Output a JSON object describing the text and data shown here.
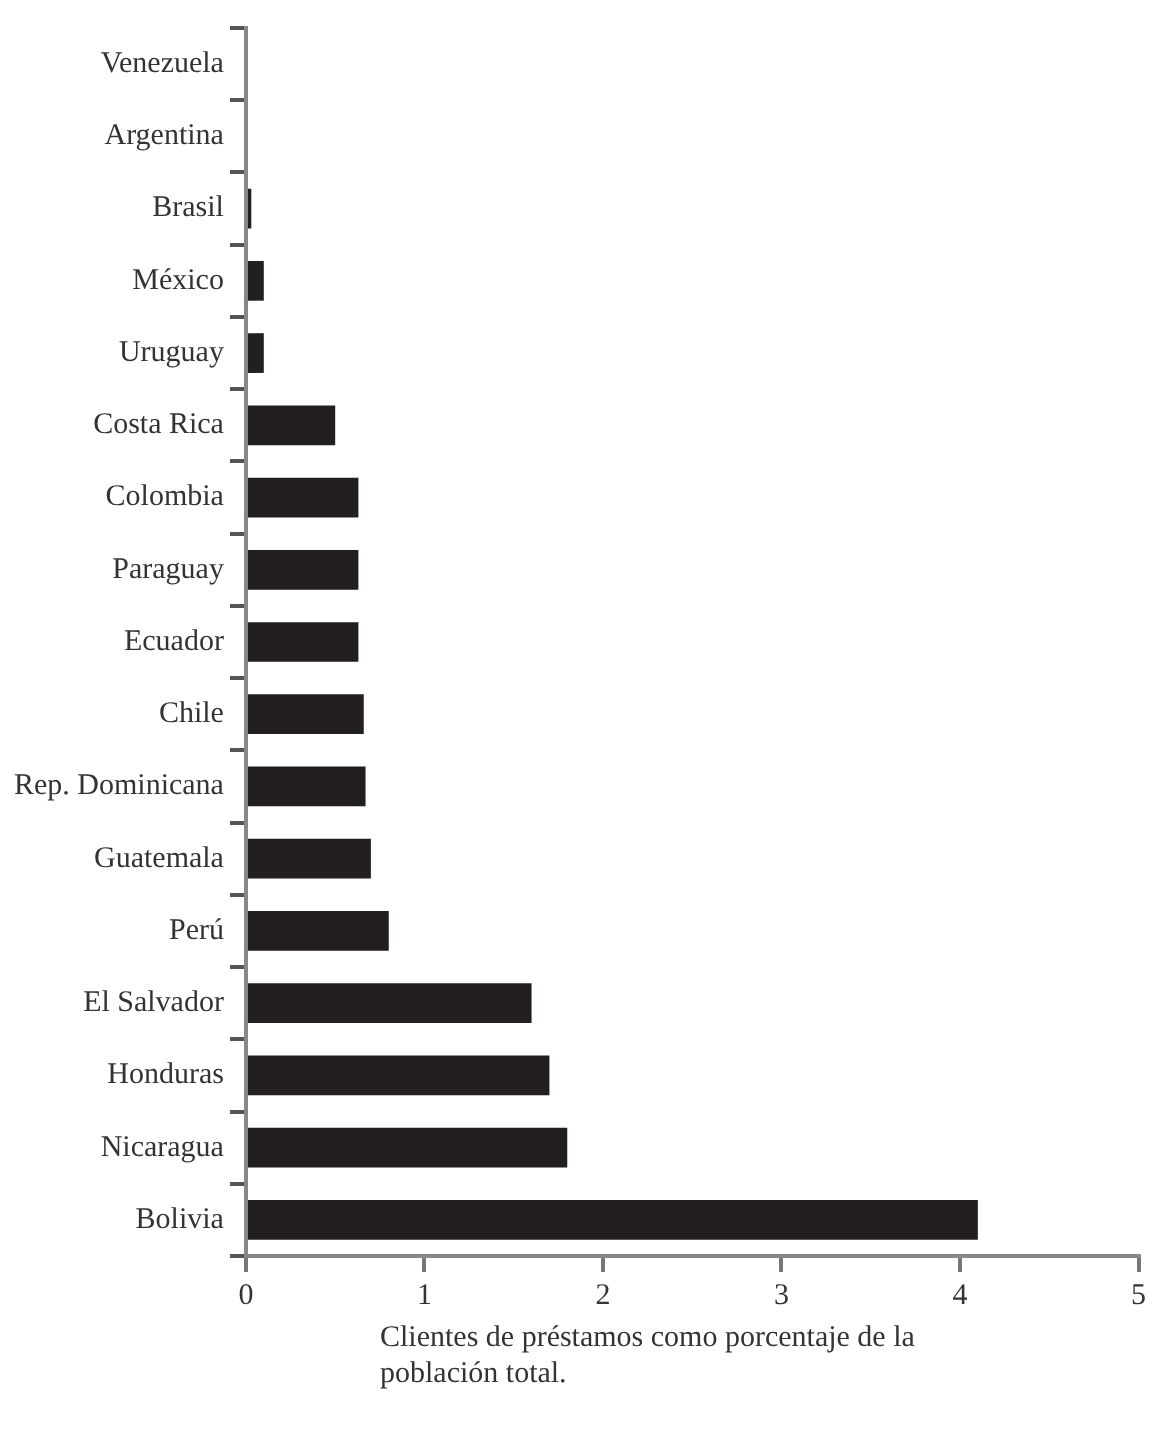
{
  "chart_data": {
    "type": "bar",
    "orientation": "horizontal",
    "categories": [
      "Venezuela",
      "Argentina",
      "Brasil",
      "México",
      "Uruguay",
      "Costa Rica",
      "Colombia",
      "Paraguay",
      "Ecuador",
      "Chile",
      "Rep. Dominicana",
      "Guatemala",
      "Perú",
      "El Salvador",
      "Honduras",
      "Nicaragua",
      "Bolivia"
    ],
    "values": [
      0,
      0,
      0.03,
      0.1,
      0.1,
      0.5,
      0.63,
      0.63,
      0.63,
      0.66,
      0.67,
      0.7,
      0.8,
      1.6,
      1.7,
      1.8,
      4.1
    ],
    "color": "#231f20",
    "xlim": [
      0,
      5
    ],
    "xticks": [
      0,
      1,
      2,
      3,
      4,
      5
    ],
    "xlabel": "Clientes de préstamos como porcentaje de la población total.",
    "grid": false,
    "legend": false
  }
}
